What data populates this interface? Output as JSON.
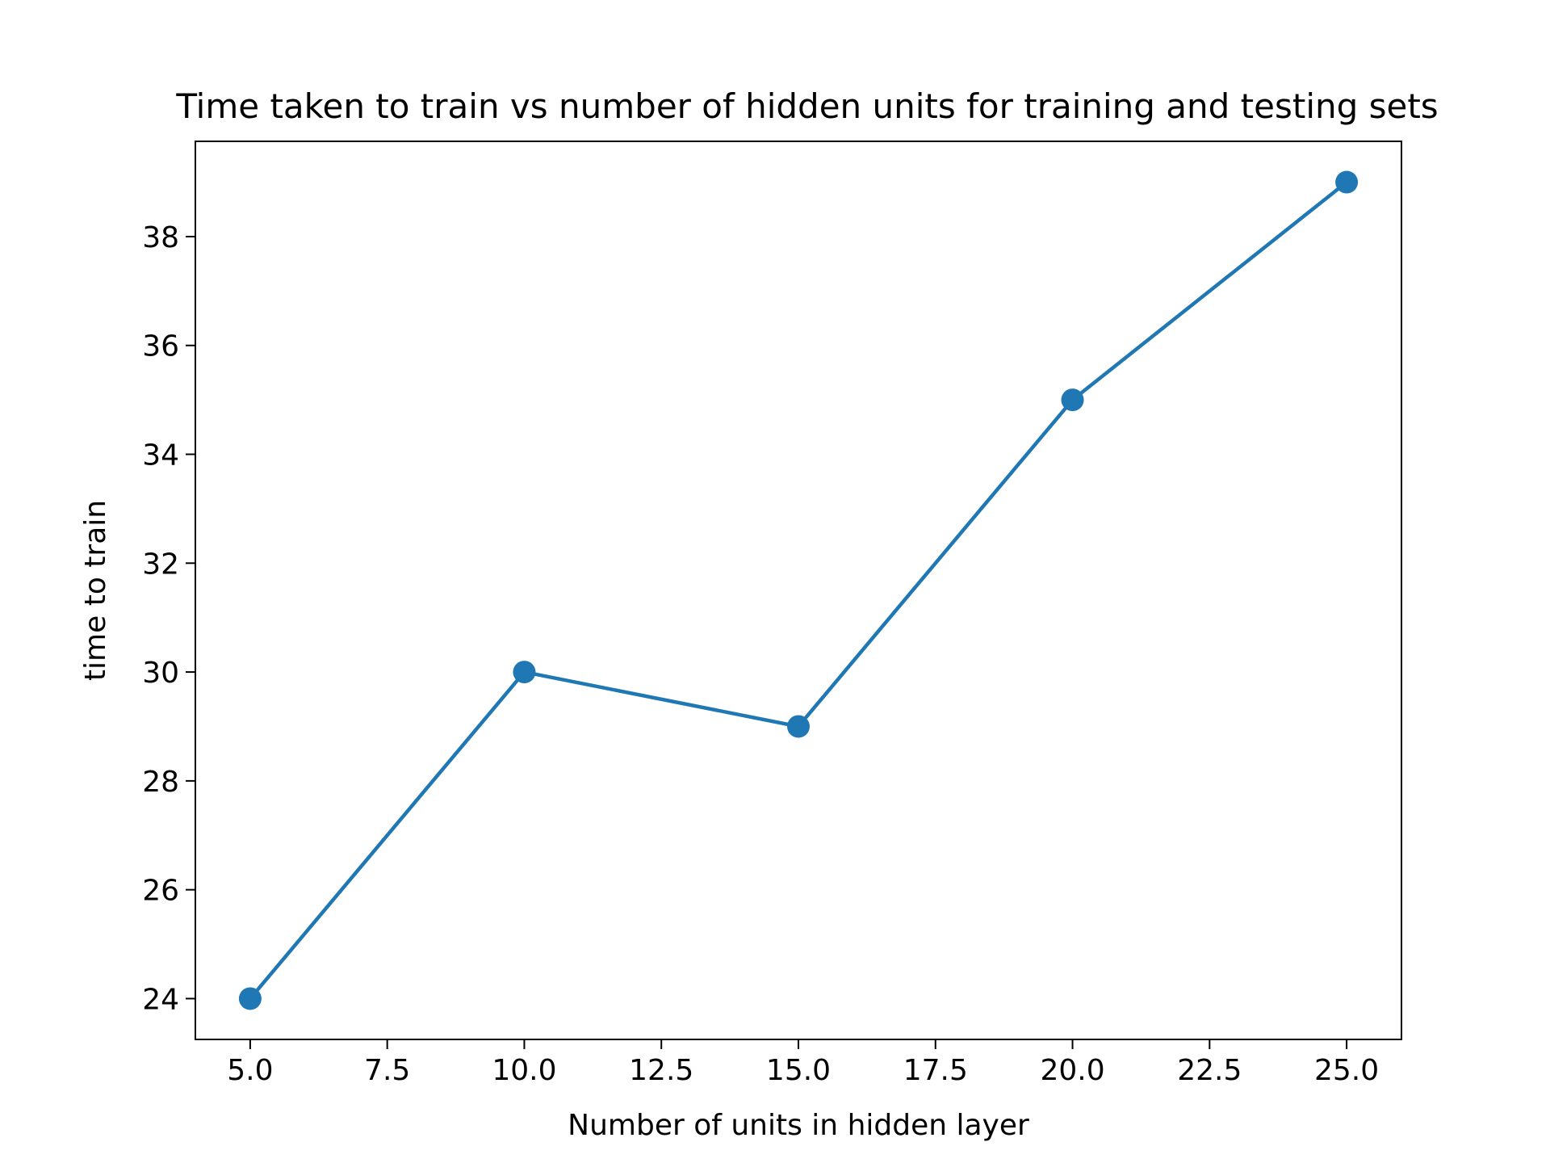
{
  "chart_data": {
    "type": "line",
    "title": "Time taken to train vs number of hidden units for training and testing sets",
    "xlabel": "Number of units in hidden layer",
    "ylabel": "time to train",
    "x": [
      5,
      10,
      15,
      20,
      25
    ],
    "series": [
      {
        "values": [
          24,
          30,
          29,
          35,
          39
        ]
      }
    ],
    "xlim": [
      4.0,
      26.0
    ],
    "ylim": [
      23.25,
      39.75
    ],
    "xticks": [
      "5.0",
      "7.5",
      "10.0",
      "12.5",
      "15.0",
      "17.5",
      "20.0",
      "22.5",
      "25.0"
    ],
    "yticks": [
      "24",
      "26",
      "28",
      "30",
      "32",
      "34",
      "36",
      "38"
    ],
    "grid": false,
    "legend": "none",
    "line_color": "#1f77b4",
    "marker": "circle"
  }
}
